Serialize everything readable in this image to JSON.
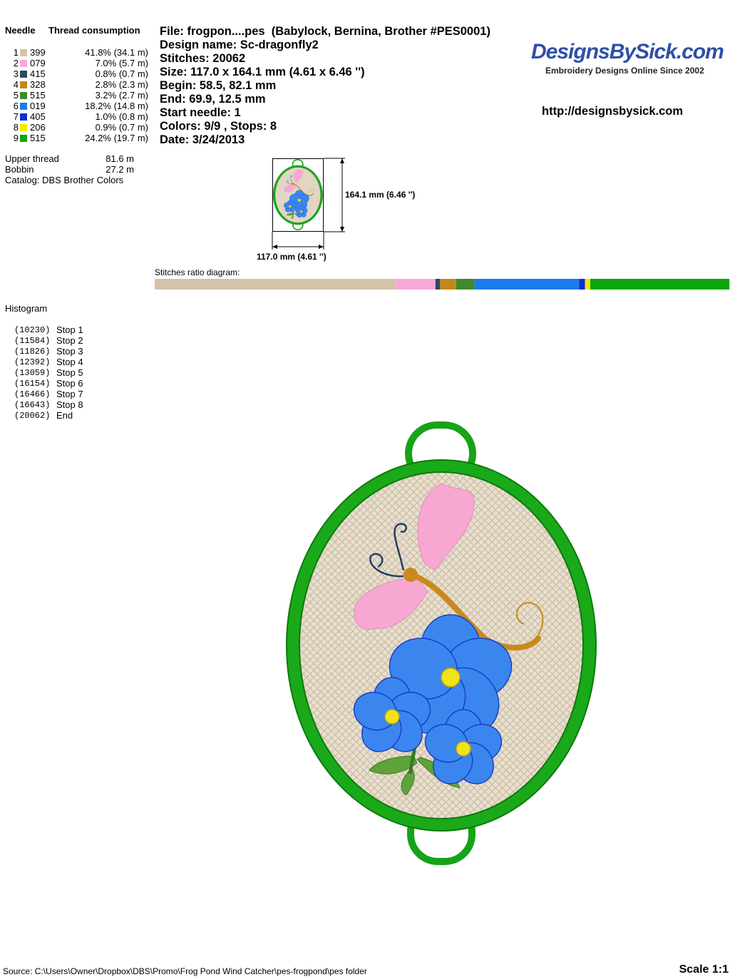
{
  "threads": {
    "headers": [
      "Needle",
      "Thread consumption"
    ],
    "rows": [
      {
        "needle": "1",
        "color": "#d2c3a9",
        "code": "399",
        "share": 41.8,
        "label": "41.8% (34.1 m)"
      },
      {
        "needle": "2",
        "color": "#f9a9d9",
        "code": "079",
        "share": 7.0,
        "label": "7.0% (5.7 m)"
      },
      {
        "needle": "3",
        "color": "#2b4a66",
        "code": "415",
        "share": 0.8,
        "label": "0.8% (0.7 m)"
      },
      {
        "needle": "4",
        "color": "#c4871a",
        "code": "328",
        "share": 2.8,
        "label": "2.8% (2.3 m)"
      },
      {
        "needle": "5",
        "color": "#3f8a2a",
        "code": "515",
        "share": 3.2,
        "label": "3.2% (2.7 m)"
      },
      {
        "needle": "6",
        "color": "#1a7cef",
        "code": "019",
        "share": 18.2,
        "label": "18.2% (14.8 m)"
      },
      {
        "needle": "7",
        "color": "#0a2fd0",
        "code": "405",
        "share": 1.0,
        "label": "1.0% (0.8 m)"
      },
      {
        "needle": "8",
        "color": "#f6e800",
        "code": "206",
        "share": 0.9,
        "label": "0.9% (0.7 m)"
      },
      {
        "needle": "9",
        "color": "#0aa80a",
        "code": "515",
        "share": 24.2,
        "label": "24.2% (19.7 m)"
      }
    ],
    "totals": [
      [
        "Upper thread",
        "81.6 m"
      ],
      [
        "Bobbin",
        "27.2 m"
      ]
    ],
    "catalog": "Catalog: DBS Brother Colors"
  },
  "info": [
    "File: frogpon....pes  (Babylock, Bernina, Brother #PES0001)",
    "Design name: Sc-dragonfly2",
    "Stitches: 20062",
    "Size: 117.0 x 164.1 mm (4.61 x 6.46 '')",
    "Begin: 58.5, 82.1 mm",
    "End: 69.9, 12.5 mm",
    "Start needle: 1",
    "Colors: 9/9 , Stops: 8",
    "Date: 3/24/2013"
  ],
  "logo": {
    "name": "DesignsBySick.com",
    "tagline": "Embroidery Designs Online Since 2002",
    "url": "http://designsbysick.com"
  },
  "thumbnail": {
    "height_label": "164.1 mm (6.46 '')",
    "width_label": "117.0 mm (4.61 '')"
  },
  "ratio_title": "Stitches ratio diagram:",
  "histogram": {
    "title": "Histogram",
    "stops": [
      [
        "(10230)",
        "Stop 1"
      ],
      [
        "(11584)",
        "Stop 2"
      ],
      [
        "(11826)",
        "Stop 3"
      ],
      [
        "(12392)",
        "Stop 4"
      ],
      [
        "(13059)",
        "Stop 5"
      ],
      [
        "(16154)",
        "Stop 6"
      ],
      [
        "(16466)",
        "Stop 7"
      ],
      [
        "(16643)",
        "Stop 8"
      ],
      [
        "(20062)",
        "End"
      ]
    ]
  },
  "footer": {
    "source": "Source: C:\\Users\\Owner\\Dropbox\\DBS\\Promo\\Frog Pond Wind Catcher\\pes-frogpond\\pes folder",
    "scale": "Scale 1:1"
  }
}
